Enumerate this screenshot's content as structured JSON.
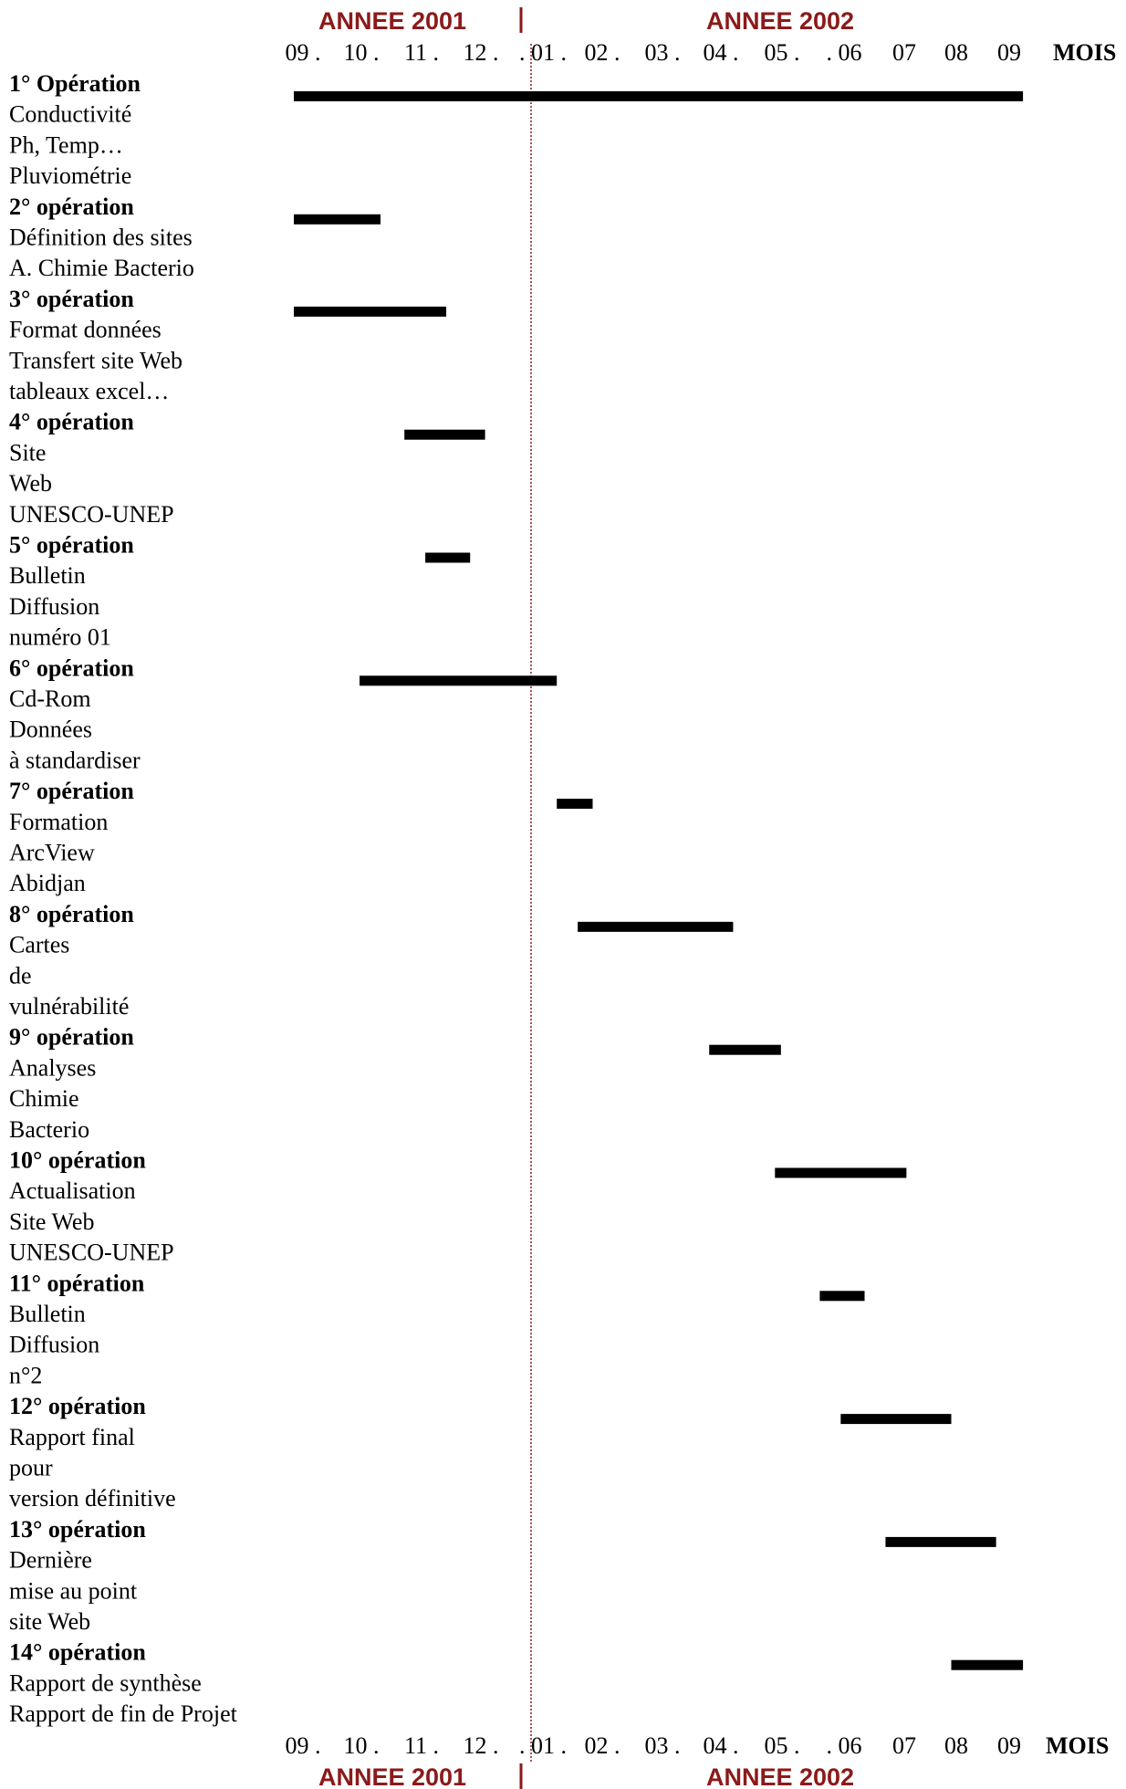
{
  "chart_data": {
    "type": "gantt",
    "header": {
      "left_year": "ANNEE 2001",
      "right_year": "ANNEE 2002",
      "month_label": "MOIS",
      "months_top": [
        "09 .",
        "10 .",
        "11 .",
        "12 .",
        ". 01 .",
        "02 .",
        "03 .",
        "04 .",
        "05 .",
        ". 06",
        "07",
        "08",
        "09"
      ],
      "months_bottom": [
        "09 .",
        "10 .",
        "11 .",
        "12 .",
        ". 01 .",
        "02 .",
        "03 .",
        "04 .",
        "05 .",
        ". 06",
        "07",
        "08",
        "09"
      ]
    },
    "x_unit": "month index from 2001-09",
    "xlim": [
      0,
      12
    ],
    "year_boundary": 4,
    "operations": [
      {
        "title": "1° Opération",
        "lines": [
          "Conductivité",
          "Ph, Temp…",
          "Pluviométrie"
        ],
        "start": 0,
        "end": 12.2
      },
      {
        "title": "2° opération",
        "lines": [
          "Définition des sites",
          "A. Chimie Bacterio"
        ],
        "start": 0,
        "end": 1.45
      },
      {
        "title": "3° opération",
        "lines": [
          "Format données",
          "Transfert site Web",
          "tableaux excel…"
        ],
        "start": 0,
        "end": 2.55
      },
      {
        "title": "4° opération",
        "lines": [
          "Site",
          "Web",
          "UNESCO-UNEP"
        ],
        "start": 1.85,
        "end": 3.2
      },
      {
        "title": "5° opération",
        "lines": [
          "Bulletin",
          "Diffusion",
          "numéro 01"
        ],
        "start": 2.2,
        "end": 2.95
      },
      {
        "title": "6° opération",
        "lines": [
          "Cd-Rom",
          "Données",
          "à standardiser"
        ],
        "start": 1.1,
        "end": 4.4
      },
      {
        "title": "7° opération",
        "lines": [
          "Formation",
          "ArcView",
          "Abidjan"
        ],
        "start": 4.4,
        "end": 5.0
      },
      {
        "title": "8° opération",
        "lines": [
          "Cartes",
          "de",
          "vulnérabilité"
        ],
        "start": 4.75,
        "end": 7.35
      },
      {
        "title": "9° opération",
        "lines": [
          "Analyses",
          "Chimie",
          "Bacterio"
        ],
        "start": 6.95,
        "end": 8.15
      },
      {
        "title": "10° opération",
        "lines": [
          "Actualisation",
          "Site Web",
          "UNESCO-UNEP"
        ],
        "start": 8.05,
        "end": 10.25
      },
      {
        "title": "11° opération",
        "lines": [
          "Bulletin",
          "Diffusion",
          "n°2"
        ],
        "start": 8.8,
        "end": 9.55
      },
      {
        "title": "12° opération",
        "lines": [
          "Rapport final",
          "pour",
          "version définitive"
        ],
        "start": 9.15,
        "end": 11.0
      },
      {
        "title": "13° opération",
        "lines": [
          "Dernière",
          "mise au point",
          "site Web"
        ],
        "start": 9.9,
        "end": 11.75
      },
      {
        "title": "14° opération",
        "lines": [
          "Rapport de synthèse",
          "Rapport de fin de Projet"
        ],
        "start": 11.0,
        "end": 12.2
      }
    ],
    "colors": {
      "year_label": "#8B1A1A",
      "divider": "#8B1A1A",
      "bar": "#000000",
      "text": "#000000"
    }
  }
}
